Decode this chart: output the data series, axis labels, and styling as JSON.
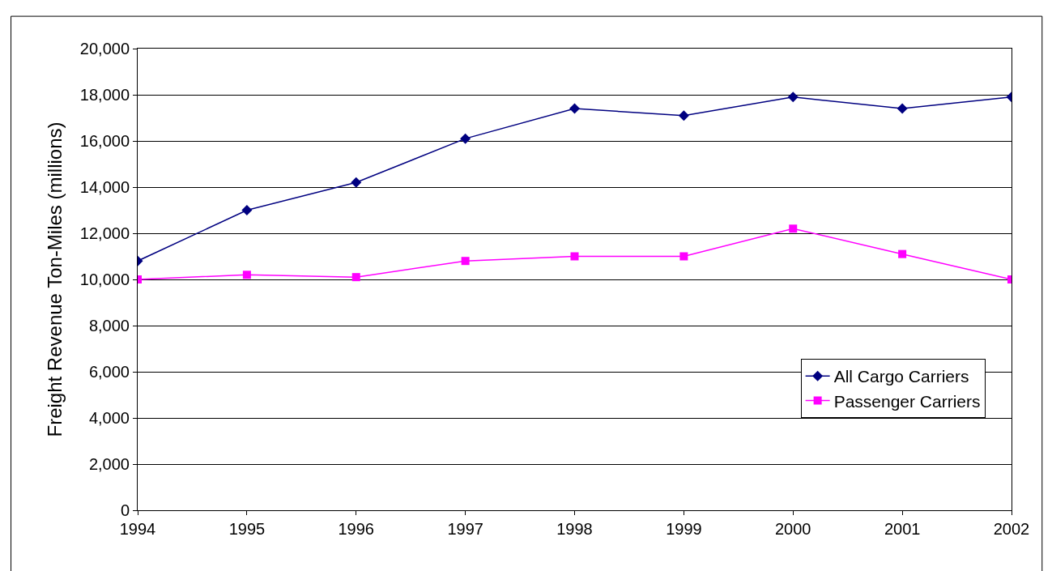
{
  "chart_data": {
    "type": "line",
    "ylabel": "Freight Revenue Ton-Miles (millions)",
    "x": [
      1994,
      1995,
      1996,
      1997,
      1998,
      1999,
      2000,
      2001,
      2002
    ],
    "xlim": [
      1994,
      2002
    ],
    "xticks": [
      1994,
      1995,
      1996,
      1997,
      1998,
      1999,
      2000,
      2001,
      2002
    ],
    "ylim": [
      0,
      20000
    ],
    "yticks": [
      {
        "value": 0,
        "label": "0"
      },
      {
        "value": 2000,
        "label": "2,000"
      },
      {
        "value": 4000,
        "label": "4,000"
      },
      {
        "value": 6000,
        "label": "6,000"
      },
      {
        "value": 8000,
        "label": "8,000"
      },
      {
        "value": 10000,
        "label": "10,000"
      },
      {
        "value": 12000,
        "label": "12,000"
      },
      {
        "value": 14000,
        "label": "14,000"
      },
      {
        "value": 16000,
        "label": "16,000"
      },
      {
        "value": 18000,
        "label": "18,000"
      },
      {
        "value": 20000,
        "label": "20,000"
      }
    ],
    "grid": "y",
    "legend": "bottom right",
    "line_style": "solid",
    "series": [
      {
        "name": "All Cargo Carriers",
        "color": "#000080",
        "marker": "diamond",
        "values": [
          10800,
          13000,
          14200,
          16100,
          17400,
          17100,
          17900,
          17400,
          17900
        ]
      },
      {
        "name": "Passenger Carriers",
        "color": "#ff00ff",
        "marker": "square",
        "values": [
          10000,
          10200,
          10100,
          10800,
          11000,
          11000,
          12200,
          11100,
          10000
        ]
      }
    ]
  }
}
